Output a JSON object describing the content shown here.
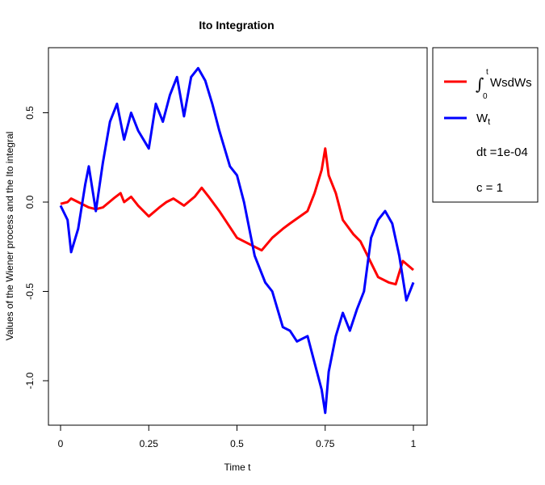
{
  "chart_data": {
    "type": "line",
    "title": "Ito Integration",
    "xlabel": "Time t",
    "ylabel": "Values of the Wiener process and the Ito integral",
    "xlim": [
      0,
      1
    ],
    "ylim": [
      -1.18,
      0.78
    ],
    "x_ticks": [
      0,
      0.25,
      0.5,
      0.75,
      1
    ],
    "x_tick_labels": [
      "0",
      "0.25",
      "0.5",
      "0.75",
      "1"
    ],
    "y_ticks": [
      -1.0,
      -0.5,
      0.0,
      0.5
    ],
    "y_tick_labels": [
      "-1.0",
      "-0.5",
      "0.0",
      "0.5"
    ],
    "grid": false,
    "legend_position": "outside right, top",
    "series": [
      {
        "name": "Ito integral of W dW",
        "color": "#ff0000",
        "x": [
          0,
          0.02,
          0.03,
          0.05,
          0.08,
          0.1,
          0.12,
          0.15,
          0.17,
          0.18,
          0.2,
          0.22,
          0.25,
          0.28,
          0.3,
          0.32,
          0.35,
          0.38,
          0.4,
          0.42,
          0.45,
          0.5,
          0.55,
          0.57,
          0.6,
          0.63,
          0.65,
          0.7,
          0.72,
          0.74,
          0.75,
          0.76,
          0.78,
          0.8,
          0.83,
          0.85,
          0.87,
          0.9,
          0.93,
          0.95,
          0.97,
          1.0
        ],
        "y": [
          -0.01,
          0.0,
          0.02,
          0.0,
          -0.03,
          -0.04,
          -0.03,
          0.02,
          0.05,
          0.0,
          0.03,
          -0.02,
          -0.08,
          -0.03,
          0.0,
          0.02,
          -0.02,
          0.03,
          0.08,
          0.03,
          -0.05,
          -0.2,
          -0.25,
          -0.27,
          -0.2,
          -0.15,
          -0.12,
          -0.05,
          0.05,
          0.18,
          0.3,
          0.15,
          0.05,
          -0.1,
          -0.18,
          -0.22,
          -0.3,
          -0.42,
          -0.45,
          -0.46,
          -0.33,
          -0.38
        ]
      },
      {
        "name": "Wiener process W",
        "color": "#0000ff",
        "x": [
          0,
          0.02,
          0.03,
          0.05,
          0.07,
          0.08,
          0.1,
          0.12,
          0.14,
          0.16,
          0.18,
          0.2,
          0.22,
          0.25,
          0.27,
          0.29,
          0.31,
          0.33,
          0.35,
          0.37,
          0.39,
          0.41,
          0.43,
          0.45,
          0.48,
          0.5,
          0.52,
          0.55,
          0.58,
          0.6,
          0.63,
          0.65,
          0.67,
          0.7,
          0.72,
          0.74,
          0.75,
          0.76,
          0.78,
          0.8,
          0.82,
          0.84,
          0.86,
          0.88,
          0.9,
          0.92,
          0.94,
          0.96,
          0.98,
          1.0
        ],
        "y": [
          -0.02,
          -0.1,
          -0.28,
          -0.15,
          0.1,
          0.2,
          -0.05,
          0.22,
          0.45,
          0.55,
          0.35,
          0.5,
          0.4,
          0.3,
          0.55,
          0.45,
          0.6,
          0.7,
          0.48,
          0.7,
          0.75,
          0.68,
          0.55,
          0.4,
          0.2,
          0.15,
          0.0,
          -0.3,
          -0.45,
          -0.5,
          -0.7,
          -0.72,
          -0.78,
          -0.75,
          -0.9,
          -1.05,
          -1.18,
          -0.95,
          -0.75,
          -0.62,
          -0.72,
          -0.6,
          -0.5,
          -0.2,
          -0.1,
          -0.05,
          -0.12,
          -0.3,
          -0.55,
          -0.45
        ]
      }
    ],
    "legend": {
      "integral_label": "WsdWs",
      "integral_upper": "t",
      "integral_lower": "0",
      "w_label": "W",
      "w_sub": "t",
      "dt_text": "dt =1e-04",
      "c_text": "c  = 1"
    }
  }
}
